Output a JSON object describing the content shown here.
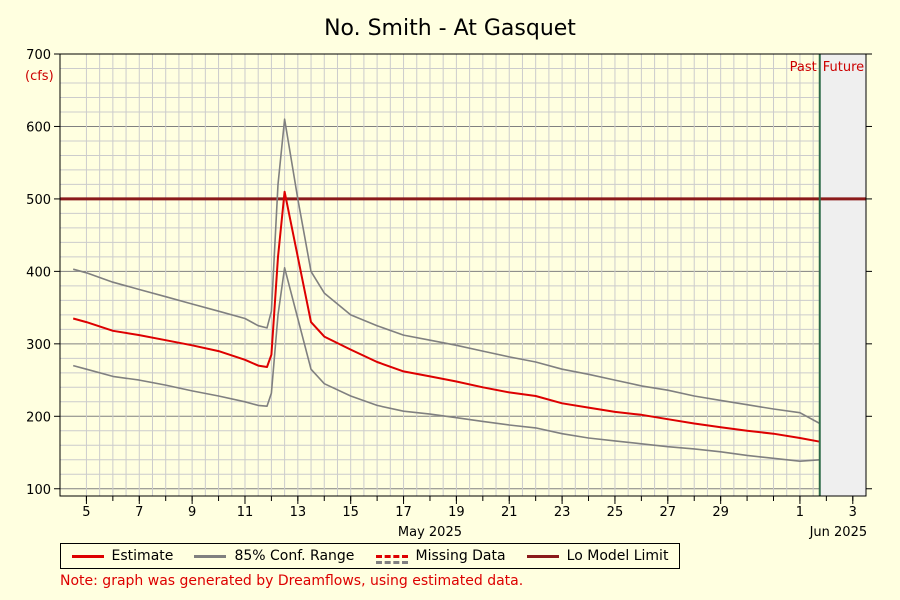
{
  "chart_data": {
    "type": "line",
    "title": "No. Smith - At Gasquet",
    "yunits": "(cfs)",
    "ylim": [
      90,
      700
    ],
    "yticks": [
      100,
      200,
      300,
      400,
      500,
      600,
      700
    ],
    "xlim_days": [
      "2025-05-04",
      "2025-06-03"
    ],
    "xticks": [
      {
        "label": "5",
        "date": "2025-05-05"
      },
      {
        "label": "7",
        "date": "2025-05-07"
      },
      {
        "label": "9",
        "date": "2025-05-09"
      },
      {
        "label": "11",
        "date": "2025-05-11"
      },
      {
        "label": "13",
        "date": "2025-05-13"
      },
      {
        "label": "15",
        "date": "2025-05-15"
      },
      {
        "label": "17",
        "date": "2025-05-17"
      },
      {
        "label": "19",
        "date": "2025-05-19"
      },
      {
        "label": "21",
        "date": "2025-05-21"
      },
      {
        "label": "23",
        "date": "2025-05-23"
      },
      {
        "label": "25",
        "date": "2025-05-25"
      },
      {
        "label": "27",
        "date": "2025-05-27"
      },
      {
        "label": "29",
        "date": "2025-05-29"
      },
      {
        "label": "1",
        "date": "2025-06-01"
      },
      {
        "label": "3",
        "date": "2025-06-03"
      }
    ],
    "month_labels": [
      {
        "label": "May 2025",
        "date": "2025-05-18"
      },
      {
        "label": "Jun 2025",
        "date": "2025-06-02"
      }
    ],
    "past_label": "Past",
    "future_label": "Future",
    "now": "2025-06-01T18:00",
    "x": [
      "2025-05-04T12:00",
      "2025-05-05T00:00",
      "2025-05-06T00:00",
      "2025-05-07T00:00",
      "2025-05-08T00:00",
      "2025-05-09T00:00",
      "2025-05-10T00:00",
      "2025-05-11T00:00",
      "2025-05-11T12:00",
      "2025-05-11T20:00",
      "2025-05-12T00:00",
      "2025-05-12T06:00",
      "2025-05-12T12:00",
      "2025-05-13T00:00",
      "2025-05-13T12:00",
      "2025-05-14T00:00",
      "2025-05-15T00:00",
      "2025-05-16T00:00",
      "2025-05-17T00:00",
      "2025-05-18T00:00",
      "2025-05-19T00:00",
      "2025-05-20T00:00",
      "2025-05-21T00:00",
      "2025-05-22T00:00",
      "2025-05-23T00:00",
      "2025-05-24T00:00",
      "2025-05-25T00:00",
      "2025-05-26T00:00",
      "2025-05-27T00:00",
      "2025-05-28T00:00",
      "2025-05-29T00:00",
      "2025-05-30T00:00",
      "2025-05-31T00:00",
      "2025-06-01T00:00",
      "2025-06-01T18:00"
    ],
    "series": [
      {
        "name": "Estimate",
        "color": "#dd0000",
        "values": [
          335,
          330,
          318,
          312,
          305,
          298,
          290,
          278,
          270,
          268,
          285,
          420,
          510,
          420,
          330,
          310,
          292,
          275,
          262,
          255,
          248,
          240,
          233,
          228,
          218,
          212,
          206,
          202,
          196,
          190,
          185,
          180,
          176,
          170,
          165
        ]
      },
      {
        "name": "85% Conf. Range",
        "color": "#808080",
        "values": [
          403,
          398,
          385,
          375,
          365,
          355,
          345,
          335,
          325,
          322,
          345,
          520,
          610,
          500,
          400,
          370,
          340,
          325,
          312,
          305,
          298,
          290,
          282,
          275,
          265,
          258,
          250,
          242,
          236,
          228,
          222,
          216,
          210,
          205,
          190
        ]
      },
      {
        "name": "85% Conf. Range",
        "color": "#808080",
        "values": [
          270,
          265,
          255,
          250,
          243,
          235,
          228,
          220,
          215,
          214,
          232,
          340,
          405,
          335,
          265,
          245,
          228,
          215,
          207,
          203,
          198,
          193,
          188,
          184,
          176,
          170,
          166,
          162,
          158,
          155,
          151,
          146,
          142,
          138,
          140
        ]
      }
    ],
    "hlines": [
      {
        "name": "Lo Model Limit",
        "value": 500,
        "color": "#8b1a1a"
      }
    ],
    "legend": [
      {
        "label": "Estimate",
        "style": "solid-red"
      },
      {
        "label": "85% Conf. Range",
        "style": "solid-gray"
      },
      {
        "label": "Missing Data",
        "style": "dashed"
      },
      {
        "label": "Lo Model Limit",
        "style": "solid-darkred"
      }
    ],
    "grid": true,
    "note": "Note: graph was generated by Dreamflows, using estimated data."
  }
}
